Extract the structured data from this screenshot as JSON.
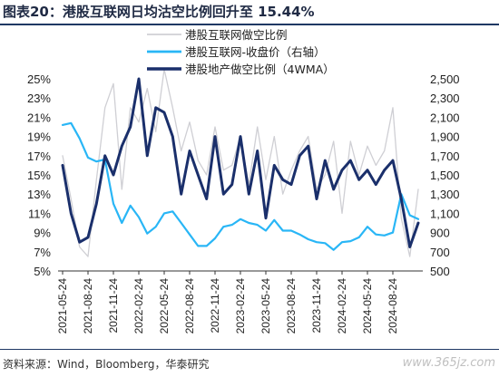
{
  "figure": {
    "title": "图表20：港股互联网日均沽空比例回升至 15.44%",
    "source": "资料来源：Wind，Bloomberg，华泰研究",
    "watermark": "www.365jz.com"
  },
  "colors": {
    "daily": "#cfcfd4",
    "price": "#29b6f6",
    "avg": "#1a2f6b",
    "rule": "#1f3864"
  },
  "chart_data": {
    "type": "line",
    "title": "",
    "x": [
      "2021-05-24",
      "2021-06-24",
      "2021-07-24",
      "2021-08-24",
      "2021-09-24",
      "2021-10-24",
      "2021-11-24",
      "2021-12-24",
      "2022-01-24",
      "2022-02-24",
      "2022-03-24",
      "2022-04-24",
      "2022-05-24",
      "2022-06-24",
      "2022-07-24",
      "2022-08-24",
      "2022-09-24",
      "2022-10-24",
      "2022-11-24",
      "2022-12-24",
      "2023-01-24",
      "2023-02-24",
      "2023-03-24",
      "2023-04-24",
      "2023-05-24",
      "2023-06-24",
      "2023-07-24",
      "2023-08-24",
      "2023-09-24",
      "2023-10-24",
      "2023-11-24",
      "2023-12-24",
      "2024-01-24",
      "2024-02-24",
      "2024-03-24",
      "2024-04-24",
      "2024-05-24",
      "2024-06-24",
      "2024-07-24",
      "2024-08-24",
      "2024-09-24",
      "2024-10-24",
      "2024-11-24"
    ],
    "x_tick_labels": [
      "2021-05-24",
      "2021-08-24",
      "2021-11-24",
      "2022-02-24",
      "2022-05-24",
      "2022-08-24",
      "2022-11-24",
      "2023-02-24",
      "2023-05-24",
      "2023-08-24",
      "2023-11-24",
      "2024-02-24",
      "2024-05-24",
      "2024-08-24"
    ],
    "y_left": {
      "ticks": [
        "25%",
        "23%",
        "21%",
        "19%",
        "17%",
        "15%",
        "13%",
        "11%",
        "9%",
        "7%",
        "5%"
      ],
      "lim": [
        5,
        25
      ],
      "unit": "%"
    },
    "y_right": {
      "ticks": [
        "2,500",
        "2,300",
        "2,100",
        "1,900",
        "1,700",
        "1,500",
        "1,300",
        "1,100",
        "900",
        "700",
        "500"
      ],
      "lim": [
        500,
        2500
      ]
    },
    "legend_position": "top-right",
    "series": [
      {
        "name": "港股互联网做空比例",
        "axis": "left",
        "style": "thin-gray",
        "values": [
          17.0,
          12.5,
          7.5,
          6.5,
          14.5,
          22.0,
          24.5,
          13.5,
          22.0,
          20.5,
          24.0,
          19.5,
          26.0,
          22.0,
          17.5,
          20.5,
          16.5,
          15.0,
          20.0,
          15.5,
          16.0,
          19.0,
          14.0,
          20.0,
          14.5,
          19.0,
          13.0,
          15.5,
          17.5,
          19.0,
          13.5,
          15.0,
          18.5,
          11.0,
          18.5,
          15.0,
          18.0,
          16.0,
          17.5,
          22.0,
          10.5,
          6.5,
          13.5
        ]
      },
      {
        "name": "港股互联网-收盘价（右轴）",
        "axis": "right",
        "style": "medium-light-blue",
        "values": [
          2020,
          2040,
          1880,
          1680,
          1640,
          1660,
          1200,
          1000,
          1180,
          1060,
          890,
          960,
          1100,
          1120,
          1000,
          880,
          760,
          760,
          840,
          960,
          980,
          1040,
          1000,
          980,
          920,
          1030,
          920,
          920,
          880,
          830,
          800,
          790,
          720,
          800,
          810,
          850,
          960,
          880,
          870,
          900,
          1300,
          1080,
          1040
        ]
      },
      {
        "name": "港股地产做空比例（4WMA）",
        "axis": "left",
        "style": "thick-navy",
        "values": [
          16.0,
          11.0,
          8.0,
          8.5,
          12.0,
          17.0,
          15.0,
          18.0,
          20.0,
          25.0,
          17.0,
          22.0,
          21.5,
          19.0,
          13.0,
          17.5,
          15.0,
          12.5,
          19.0,
          13.0,
          14.0,
          19.0,
          13.0,
          17.5,
          10.5,
          16.0,
          14.5,
          14.0,
          17.0,
          18.0,
          12.5,
          16.5,
          13.5,
          15.5,
          16.5,
          14.5,
          15.5,
          14.0,
          15.5,
          16.5,
          12.5,
          7.5,
          10.0
        ]
      }
    ]
  }
}
